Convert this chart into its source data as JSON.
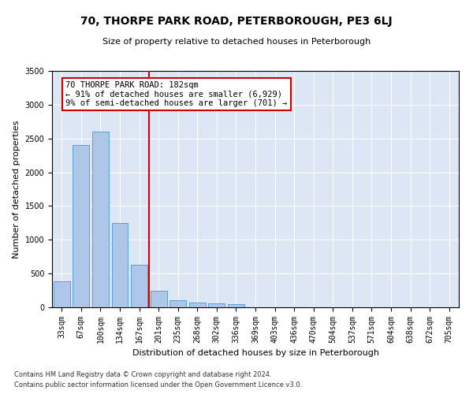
{
  "title": "70, THORPE PARK ROAD, PETERBOROUGH, PE3 6LJ",
  "subtitle": "Size of property relative to detached houses in Peterborough",
  "xlabel": "Distribution of detached houses by size in Peterborough",
  "ylabel": "Number of detached properties",
  "footnote1": "Contains HM Land Registry data © Crown copyright and database right 2024.",
  "footnote2": "Contains public sector information licensed under the Open Government Licence v3.0.",
  "annotation_line1": "70 THORPE PARK ROAD: 182sqm",
  "annotation_line2": "← 91% of detached houses are smaller (6,929)",
  "annotation_line3": "9% of semi-detached houses are larger (701) →",
  "bar_color": "#aec6e8",
  "bar_edge_color": "#5a9fd4",
  "line_color": "#cc0000",
  "annotation_box_edgecolor": "#cc0000",
  "background_color": "#dce6f5",
  "fig_facecolor": "#ffffff",
  "categories": [
    "33sqm",
    "67sqm",
    "100sqm",
    "134sqm",
    "167sqm",
    "201sqm",
    "235sqm",
    "268sqm",
    "302sqm",
    "336sqm",
    "369sqm",
    "403sqm",
    "436sqm",
    "470sqm",
    "504sqm",
    "537sqm",
    "571sqm",
    "604sqm",
    "638sqm",
    "672sqm",
    "705sqm"
  ],
  "values": [
    380,
    2400,
    2600,
    1250,
    630,
    250,
    100,
    65,
    55,
    50,
    0,
    0,
    0,
    0,
    0,
    0,
    0,
    0,
    0,
    0,
    0
  ],
  "line_x_index": 4.5,
  "ylim": [
    0,
    3500
  ],
  "yticks": [
    0,
    500,
    1000,
    1500,
    2000,
    2500,
    3000,
    3500
  ],
  "title_fontsize": 10,
  "subtitle_fontsize": 8,
  "ylabel_fontsize": 8,
  "xlabel_fontsize": 8,
  "tick_fontsize": 7,
  "annotation_fontsize": 7.5,
  "footnote_fontsize": 6
}
